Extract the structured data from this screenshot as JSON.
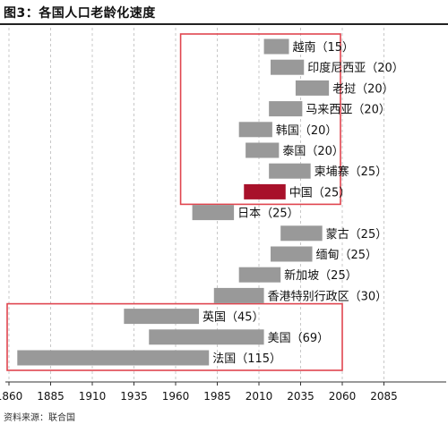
{
  "figure_title": "图3：各国人口老龄化速度",
  "source_note": "资料来源：联合国",
  "colors": {
    "bar": "#999999",
    "highlight": "#a8112a",
    "box": "#e0454f",
    "grid": "#c8c8c8",
    "axis": "#333333"
  },
  "chart_data": {
    "type": "bar",
    "orientation": "horizontal-floating",
    "title": "",
    "xlabel": "",
    "ylabel": "",
    "xlim": [
      1860,
      2110
    ],
    "xticks": [
      1860,
      1885,
      1910,
      1935,
      1960,
      1985,
      2010,
      2035,
      2060,
      2085
    ],
    "grid": "vertical dashed",
    "series": [
      {
        "label": "越南（15）",
        "start": 2013,
        "end": 2028,
        "years": 15
      },
      {
        "label": "印度尼西亚（20）",
        "start": 2017,
        "end": 2037,
        "years": 20
      },
      {
        "label": "老挝（20）",
        "start": 2032,
        "end": 2052,
        "years": 20
      },
      {
        "label": "马来西亚（20）",
        "start": 2016,
        "end": 2036,
        "years": 20
      },
      {
        "label": "韩国（20）",
        "start": 1998,
        "end": 2018,
        "years": 20
      },
      {
        "label": "泰国（20）",
        "start": 2002,
        "end": 2022,
        "years": 20
      },
      {
        "label": "柬埔寨（25）",
        "start": 2016,
        "end": 2041,
        "years": 25
      },
      {
        "label": "中国（25）",
        "start": 2001,
        "end": 2026,
        "years": 25,
        "highlight": true
      },
      {
        "label": "日本（25）",
        "start": 1970,
        "end": 1995,
        "years": 25
      },
      {
        "label": "蒙古（25）",
        "start": 2023,
        "end": 2048,
        "years": 25
      },
      {
        "label": "缅甸（25）",
        "start": 2017,
        "end": 2042,
        "years": 25
      },
      {
        "label": "新加坡（25）",
        "start": 1998,
        "end": 2023,
        "years": 25
      },
      {
        "label": "香港特别行政区（30）",
        "start": 1983,
        "end": 2013,
        "years": 30
      },
      {
        "label": "英国（45）",
        "start": 1929,
        "end": 1974,
        "years": 45
      },
      {
        "label": "美国（69）",
        "start": 1944,
        "end": 2013,
        "years": 69
      },
      {
        "label": "法国（115）",
        "start": 1865,
        "end": 1980,
        "years": 115
      }
    ],
    "groups": [
      {
        "name": "asia-recent",
        "first_index": 0,
        "last_index": 7
      },
      {
        "name": "western",
        "first_index": 13,
        "last_index": 15
      }
    ]
  }
}
